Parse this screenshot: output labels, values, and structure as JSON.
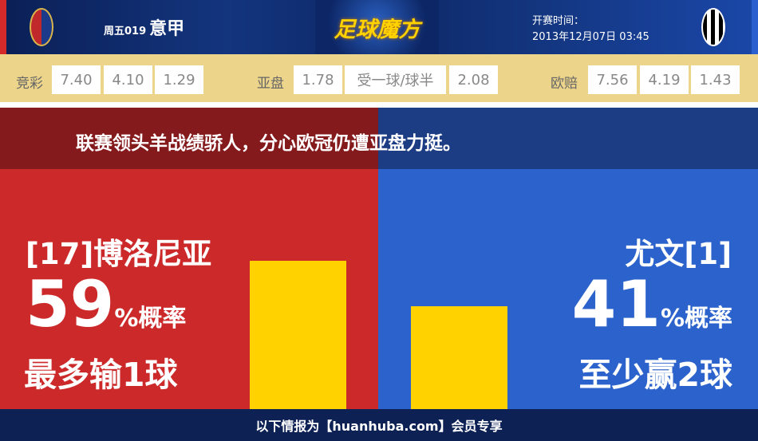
{
  "header": {
    "match_no": "周五019",
    "league": "意甲",
    "brand": "足球魔方",
    "time_label": "开赛时间：",
    "time_value": "2013年12月07日 03:45"
  },
  "odds": {
    "jingcai": {
      "label": "竞彩",
      "values": [
        "7.40",
        "4.10",
        "1.29"
      ]
    },
    "asian": {
      "label": "亚盘",
      "values": [
        "1.78",
        "受一球/球半",
        "2.08"
      ]
    },
    "euro": {
      "label": "欧赔",
      "values": [
        "7.56",
        "4.19",
        "1.43"
      ]
    }
  },
  "headline": "联赛领头羊战绩骄人，分心欧冠仍遭亚盘力挺。",
  "home": {
    "team": "[17]博洛尼亚",
    "percent": "59",
    "percent_suffix": "%概率",
    "result": "最多输1球",
    "probability": 59
  },
  "away": {
    "team": "尤文[1]",
    "percent": "41",
    "percent_suffix": "%概率",
    "result": "至少赢2球",
    "probability": 41
  },
  "colors": {
    "home": "#cc2a2a",
    "away": "#2b62cc",
    "bar": "#ffd200",
    "odds_bg": "#ecd48a"
  },
  "footer": "以下情报为【huanhuba.com】会员专享"
}
